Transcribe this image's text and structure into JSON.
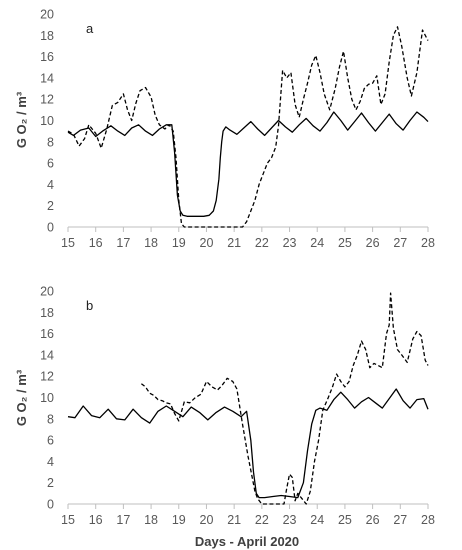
{
  "chart_data": [
    {
      "type": "line",
      "panel_label": "a",
      "ylabel": "G O₂ / m³",
      "xlabel": "",
      "xlim": [
        15,
        28
      ],
      "ylim": [
        0,
        20
      ],
      "xticks": [
        15,
        16,
        17,
        18,
        19,
        20,
        21,
        22,
        23,
        24,
        25,
        26,
        27,
        28
      ],
      "yticks": [
        0,
        2,
        4,
        6,
        8,
        10,
        12,
        14,
        16,
        18,
        20
      ],
      "grid": false,
      "series": [
        {
          "style": "solid",
          "x": [
            15.0,
            15.2,
            15.45,
            15.75,
            16.0,
            16.25,
            16.55,
            16.8,
            17.05,
            17.3,
            17.55,
            17.8,
            18.05,
            18.3,
            18.55,
            18.75,
            18.85,
            18.95,
            19.05,
            19.15,
            19.3,
            19.6,
            19.9,
            20.1,
            20.25,
            20.35,
            20.45,
            20.5,
            20.55,
            20.6,
            20.7,
            20.85,
            21.1,
            21.35,
            21.6,
            21.85,
            22.1,
            22.35,
            22.6,
            22.85,
            23.1,
            23.35,
            23.6,
            23.85,
            24.1,
            24.35,
            24.6,
            24.85,
            25.1,
            25.35,
            25.6,
            25.85,
            26.1,
            26.35,
            26.6,
            26.85,
            27.1,
            27.35,
            27.6,
            27.85,
            28.0
          ],
          "y": [
            8.9,
            8.6,
            9.1,
            9.3,
            8.5,
            9.0,
            9.5,
            9.0,
            8.6,
            9.3,
            9.6,
            9.0,
            8.6,
            9.2,
            9.6,
            9.6,
            7.0,
            3.0,
            1.5,
            1.1,
            1.0,
            1.0,
            1.0,
            1.1,
            1.5,
            2.5,
            4.5,
            6.5,
            8.0,
            9.0,
            9.4,
            9.1,
            8.7,
            9.3,
            9.9,
            9.2,
            8.6,
            9.3,
            10.0,
            9.4,
            8.9,
            9.6,
            10.2,
            9.5,
            9.0,
            9.8,
            10.8,
            10.0,
            9.1,
            9.9,
            10.7,
            9.8,
            9.0,
            9.8,
            10.6,
            9.7,
            9.1,
            10.0,
            10.8,
            10.3,
            9.9
          ]
        },
        {
          "style": "dashed",
          "x": [
            15.0,
            15.2,
            15.4,
            15.6,
            15.75,
            16.0,
            16.2,
            16.4,
            16.6,
            16.8,
            17.0,
            17.15,
            17.3,
            17.45,
            17.6,
            17.8,
            18.0,
            18.15,
            18.3,
            18.5,
            18.65,
            18.8,
            18.9,
            19.0,
            19.1,
            19.2,
            19.5,
            19.8,
            20.1,
            20.3,
            20.5,
            20.7,
            21.0,
            21.3,
            21.45,
            21.6,
            21.75,
            21.9,
            22.05,
            22.2,
            22.35,
            22.5,
            22.6,
            22.75,
            22.9,
            23.05,
            23.2,
            23.35,
            23.5,
            23.65,
            23.8,
            23.95,
            24.1,
            24.25,
            24.45,
            24.65,
            24.8,
            24.95,
            25.1,
            25.25,
            25.4,
            25.55,
            25.7,
            25.85,
            26.0,
            26.15,
            26.3,
            26.45,
            26.6,
            26.75,
            26.9,
            27.05,
            27.25,
            27.4,
            27.6,
            27.8,
            28.0
          ],
          "y": [
            9.0,
            8.7,
            7.6,
            8.3,
            9.6,
            8.8,
            7.4,
            9.2,
            11.4,
            11.7,
            12.5,
            11.0,
            10.0,
            11.6,
            12.8,
            13.1,
            12.2,
            10.5,
            9.6,
            9.2,
            9.6,
            9.0,
            6.5,
            2.5,
            0.3,
            0.0,
            0.0,
            0.0,
            0.0,
            0.0,
            0.0,
            0.0,
            0.0,
            0.0,
            0.5,
            1.5,
            2.5,
            4.0,
            5.0,
            6.0,
            6.5,
            7.5,
            9.5,
            14.7,
            14.0,
            14.5,
            11.5,
            10.3,
            12.0,
            13.5,
            15.2,
            16.1,
            14.5,
            12.5,
            11.0,
            13.0,
            15.0,
            16.5,
            14.0,
            12.0,
            11.0,
            11.8,
            13.0,
            13.4,
            13.5,
            14.2,
            11.5,
            12.5,
            15.5,
            18.0,
            18.8,
            17.0,
            14.0,
            12.3,
            14.5,
            18.5,
            17.5
          ]
        }
      ]
    },
    {
      "type": "line",
      "panel_label": "b",
      "ylabel": "G O₂ / m³",
      "xlabel": "Days - April 2020",
      "xlim": [
        15,
        28
      ],
      "ylim": [
        0,
        20
      ],
      "xticks": [
        15,
        16,
        17,
        18,
        19,
        20,
        21,
        22,
        23,
        24,
        25,
        26,
        27,
        28
      ],
      "yticks": [
        0,
        2,
        4,
        6,
        8,
        10,
        12,
        14,
        16,
        18,
        20
      ],
      "grid": false,
      "series": [
        {
          "style": "solid",
          "x": [
            15.0,
            15.25,
            15.55,
            15.85,
            16.15,
            16.45,
            16.75,
            17.05,
            17.35,
            17.65,
            17.95,
            18.25,
            18.55,
            18.85,
            19.15,
            19.45,
            19.75,
            20.05,
            20.35,
            20.65,
            20.95,
            21.25,
            21.45,
            21.6,
            21.7,
            21.8,
            21.9,
            22.1,
            22.4,
            22.7,
            23.0,
            23.3,
            23.5,
            23.65,
            23.8,
            23.95,
            24.1,
            24.35,
            24.6,
            24.85,
            25.1,
            25.35,
            25.6,
            25.85,
            26.1,
            26.35,
            26.6,
            26.85,
            27.1,
            27.35,
            27.6,
            27.85,
            28.0
          ],
          "y": [
            8.2,
            8.1,
            9.2,
            8.3,
            8.1,
            8.9,
            8.0,
            7.9,
            8.9,
            8.1,
            7.6,
            8.7,
            9.2,
            8.7,
            8.2,
            9.1,
            8.6,
            7.9,
            8.6,
            9.1,
            8.7,
            8.2,
            8.7,
            6.0,
            3.0,
            1.0,
            0.6,
            0.6,
            0.7,
            0.8,
            0.7,
            0.6,
            2.0,
            5.0,
            7.5,
            8.8,
            9.0,
            8.8,
            9.8,
            10.5,
            9.8,
            9.0,
            9.6,
            10.0,
            9.5,
            9.0,
            9.9,
            10.8,
            9.7,
            9.0,
            9.8,
            9.9,
            8.9
          ]
        },
        {
          "style": "dashed",
          "x": [
            17.65,
            17.8,
            17.95,
            18.1,
            18.25,
            18.4,
            18.55,
            18.7,
            18.85,
            19.0,
            19.2,
            19.4,
            19.6,
            19.8,
            20.0,
            20.2,
            20.4,
            20.55,
            20.75,
            20.95,
            21.1,
            21.3,
            21.5,
            21.65,
            21.75,
            21.85,
            22.0,
            22.2,
            22.45,
            22.65,
            22.8,
            22.9,
            23.0,
            23.1,
            23.2,
            23.3,
            23.45,
            23.6,
            23.75,
            23.9,
            24.05,
            24.2,
            24.4,
            24.55,
            24.7,
            24.85,
            25.0,
            25.15,
            25.3,
            25.45,
            25.6,
            25.75,
            25.9,
            26.05,
            26.2,
            26.35,
            26.5,
            26.6,
            26.65,
            26.75,
            26.9,
            27.05,
            27.25,
            27.45,
            27.6,
            27.75,
            27.9,
            28.0
          ],
          "y": [
            11.3,
            11.0,
            10.4,
            10.2,
            9.8,
            9.7,
            9.5,
            9.4,
            8.5,
            7.8,
            9.6,
            9.5,
            10.0,
            10.3,
            11.5,
            11.0,
            10.7,
            11.1,
            11.8,
            11.5,
            10.8,
            7.5,
            4.5,
            2.5,
            1.2,
            0.5,
            0.0,
            0.0,
            0.0,
            0.0,
            0.0,
            1.5,
            2.8,
            2.5,
            0.3,
            1.0,
            0.5,
            0.0,
            1.2,
            4.0,
            6.0,
            8.8,
            10.0,
            11.0,
            12.2,
            11.5,
            11.0,
            11.5,
            13.0,
            14.0,
            15.3,
            14.5,
            12.8,
            13.2,
            13.0,
            12.8,
            16.0,
            16.8,
            19.8,
            16.5,
            14.5,
            14.0,
            13.3,
            15.5,
            16.2,
            15.8,
            13.5,
            13.0
          ]
        }
      ]
    }
  ]
}
